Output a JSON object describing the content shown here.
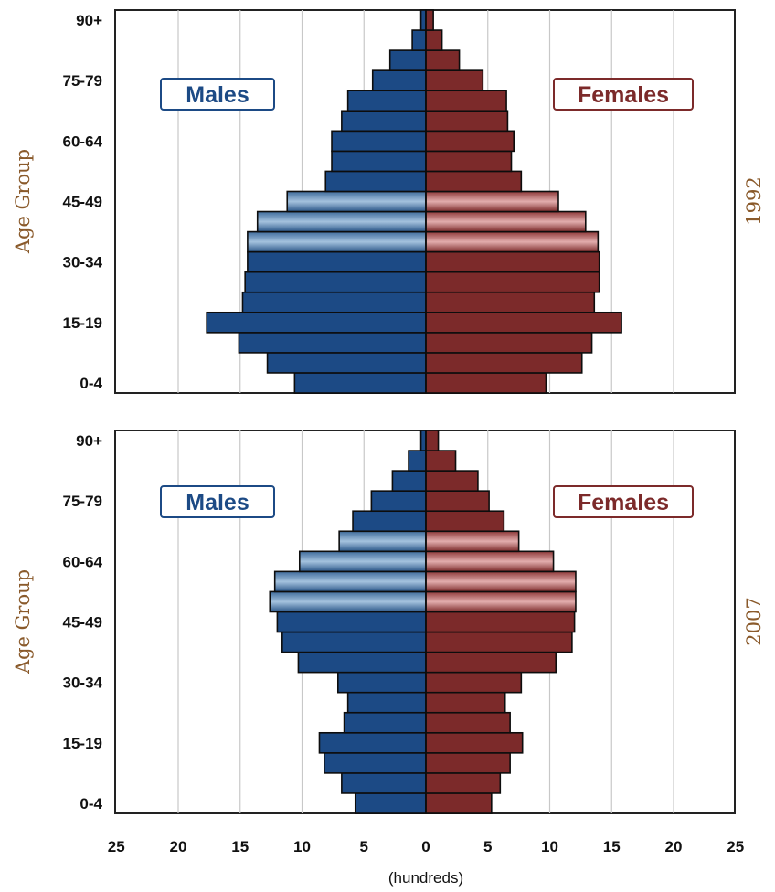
{
  "chart_data": [
    {
      "type": "bar",
      "orientation": "horizontal-population-pyramid",
      "year_label": "1992",
      "ylabel": "Age Group",
      "tick_labels": [
        "0-4",
        "15-19",
        "30-34",
        "45-49",
        "60-64",
        "75-79",
        "90+"
      ],
      "categories": [
        "0-4",
        "5-9",
        "10-14",
        "15-19",
        "20-24",
        "25-29",
        "30-34",
        "35-39",
        "40-44",
        "45-49",
        "50-54",
        "55-59",
        "60-64",
        "65-69",
        "70-74",
        "75-79",
        "80-84",
        "85-89",
        "90+"
      ],
      "series": [
        {
          "name": "Males",
          "color": "#1c4a85",
          "values": [
            10.6,
            12.8,
            15.1,
            17.7,
            14.8,
            14.6,
            14.4,
            14.4,
            13.6,
            11.2,
            8.1,
            7.6,
            7.6,
            6.8,
            6.3,
            4.3,
            2.9,
            1.1,
            0.4
          ]
        },
        {
          "name": "Females",
          "color": "#7c2a2a",
          "values": [
            9.7,
            12.6,
            13.4,
            15.8,
            13.6,
            14.0,
            14.0,
            13.9,
            12.9,
            10.7,
            7.7,
            6.9,
            7.1,
            6.6,
            6.5,
            4.6,
            2.7,
            1.3,
            0.6
          ]
        }
      ],
      "highlight_categories": [
        "35-39",
        "40-44",
        "45-49"
      ],
      "xlim": [
        -25,
        25
      ]
    },
    {
      "type": "bar",
      "orientation": "horizontal-population-pyramid",
      "year_label": "2007",
      "ylabel": "Age Group",
      "tick_labels": [
        "0-4",
        "15-19",
        "30-34",
        "45-49",
        "60-64",
        "75-79",
        "90+"
      ],
      "categories": [
        "0-4",
        "5-9",
        "10-14",
        "15-19",
        "20-24",
        "25-29",
        "30-34",
        "35-39",
        "40-44",
        "45-49",
        "50-54",
        "55-59",
        "60-64",
        "65-69",
        "70-74",
        "75-79",
        "80-84",
        "85-89",
        "90+"
      ],
      "series": [
        {
          "name": "Males",
          "color": "#1c4a85",
          "values": [
            5.7,
            6.8,
            8.2,
            8.6,
            6.6,
            6.3,
            7.1,
            10.3,
            11.6,
            12.0,
            12.6,
            12.2,
            10.2,
            7.0,
            5.9,
            4.4,
            2.7,
            1.4,
            0.4
          ]
        },
        {
          "name": "Females",
          "color": "#7c2a2a",
          "values": [
            5.3,
            6.0,
            6.8,
            7.8,
            6.8,
            6.4,
            7.7,
            10.5,
            11.8,
            12.0,
            12.1,
            12.1,
            10.3,
            7.5,
            6.3,
            5.1,
            4.2,
            2.4,
            1.0
          ]
        }
      ],
      "highlight_categories": [
        "50-54",
        "55-59",
        "60-64",
        "65-69"
      ],
      "xlim": [
        -25,
        25
      ]
    }
  ],
  "x_axis": {
    "tick_labels": [
      "25",
      "20",
      "15",
      "10",
      "5",
      "0",
      "5",
      "10",
      "15",
      "20",
      "25"
    ],
    "unit_label": "(hundreds)"
  },
  "legend": {
    "males": "Males",
    "females": "Females"
  },
  "colors": {
    "male": "#1c4a85",
    "male_highlight_light": "#8db3d6",
    "female": "#7c2a2a",
    "female_highlight_light": "#d9a1a1",
    "title_text": "#8a5a2b",
    "grid": "#c8c8c8"
  }
}
